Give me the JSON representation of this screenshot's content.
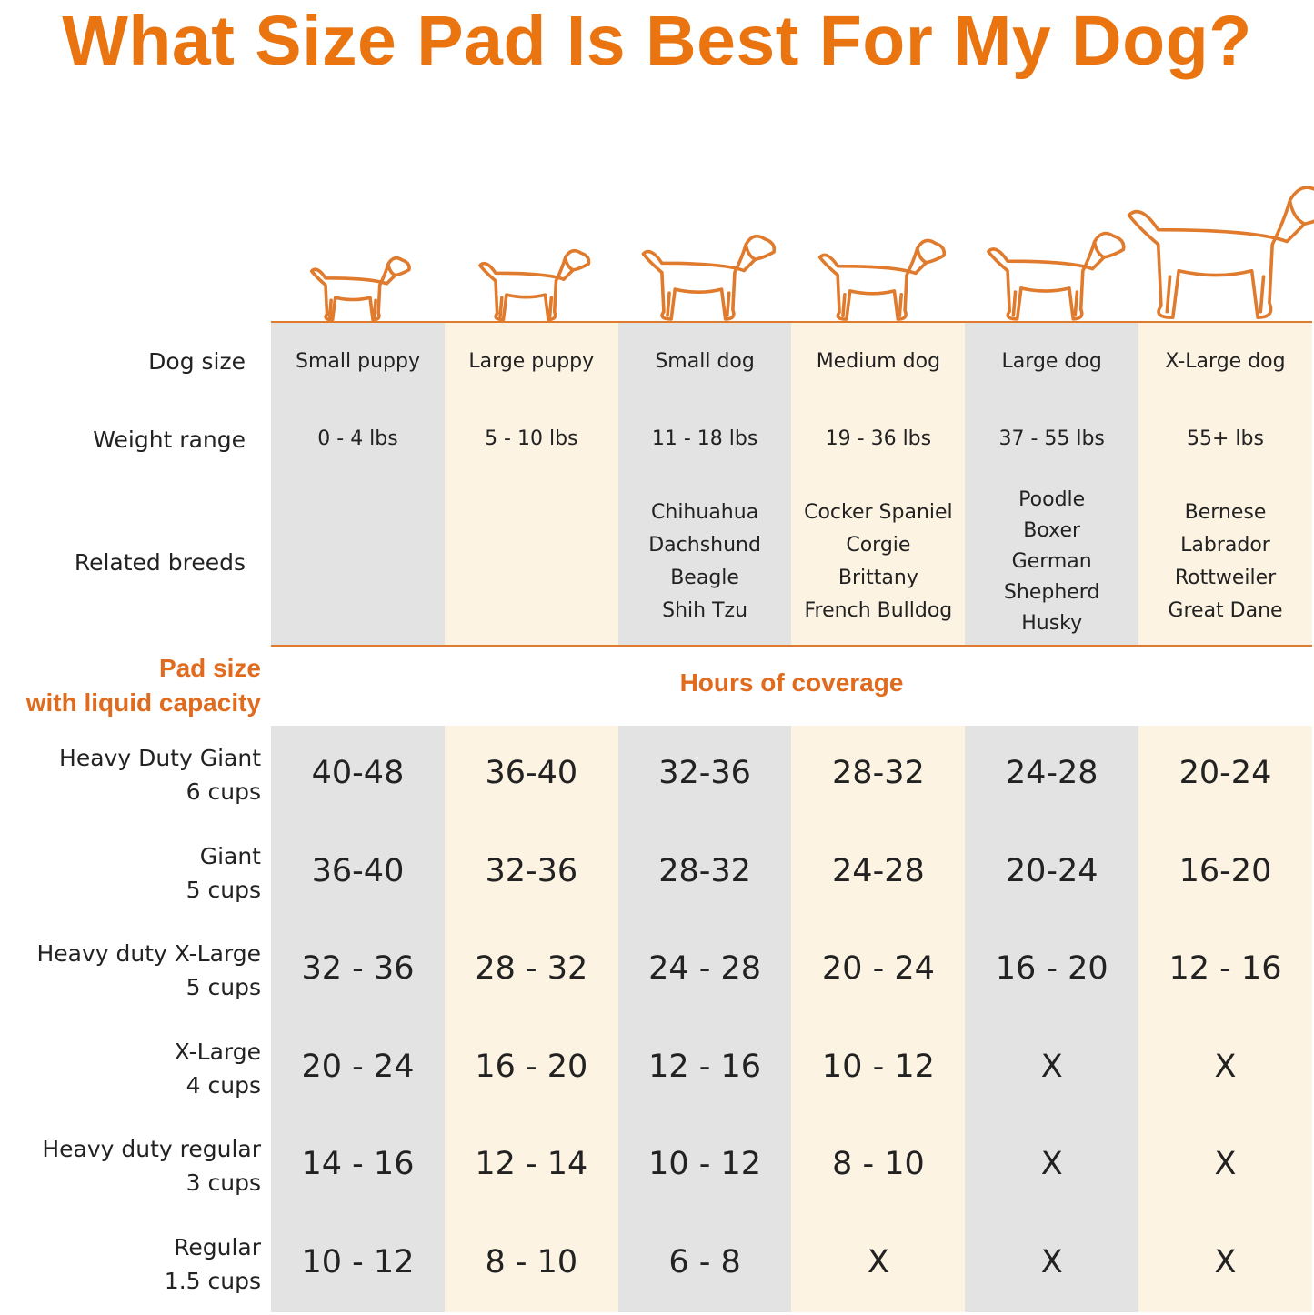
{
  "title": "What Size Pad Is Best For My Dog?",
  "colors": {
    "accent": "#ea7410",
    "gray_column": "#e3e3e3",
    "cream_column": "#fdf3e2"
  },
  "row_labels": {
    "dog_size": "Dog size",
    "weight_range": "Weight range",
    "related_breeds": "Related breeds"
  },
  "pad_header": {
    "line1": "Pad size",
    "line2": "with liquid capacity"
  },
  "coverage_header": "Hours of coverage",
  "dogs": [
    {
      "icon": "small-puppy-icon",
      "size": "Small puppy",
      "weight": "0 - 4 lbs",
      "breeds": []
    },
    {
      "icon": "large-puppy-icon",
      "size": "Large puppy",
      "weight": "5 - 10 lbs",
      "breeds": []
    },
    {
      "icon": "small-dog-icon",
      "size": "Small dog",
      "weight": "11 - 18 lbs",
      "breeds": [
        "Chihuahua",
        "Dachshund",
        "Beagle",
        "Shih Tzu"
      ]
    },
    {
      "icon": "medium-dog-icon",
      "size": "Medium dog",
      "weight": "19 - 36 lbs",
      "breeds": [
        "Cocker Spaniel",
        "Corgie",
        "Brittany",
        "French Bulldog"
      ]
    },
    {
      "icon": "large-dog-icon",
      "size": "Large dog",
      "weight": "37 - 55 lbs",
      "breeds": [
        "Poodle",
        "Boxer",
        "German",
        "Shepherd",
        "Husky"
      ]
    },
    {
      "icon": "xlarge-dog-icon",
      "size": "X-Large dog",
      "weight": "55+ lbs",
      "breeds": [
        "Bernese",
        "Labrador",
        "Rottweiler",
        "Great Dane"
      ]
    }
  ],
  "pads": [
    {
      "name": "Heavy Duty Giant",
      "capacity": "6 cups",
      "hours": [
        "40-48",
        "36-40",
        "32-36",
        "28-32",
        "24-28",
        "20-24"
      ]
    },
    {
      "name": "Giant",
      "capacity": "5 cups",
      "hours": [
        "36-40",
        "32-36",
        "28-32",
        "24-28",
        "20-24",
        "16-20"
      ]
    },
    {
      "name": "Heavy duty X-Large",
      "capacity": "5 cups",
      "hours": [
        "32 - 36",
        "28 - 32",
        "24 - 28",
        "20 - 24",
        "16 - 20",
        "12 - 16"
      ]
    },
    {
      "name": "X-Large",
      "capacity": "4 cups",
      "hours": [
        "20 - 24",
        "16 - 20",
        "12 - 16",
        "10 - 12",
        "X",
        "X"
      ]
    },
    {
      "name": "Heavy duty regular",
      "capacity": "3 cups",
      "hours": [
        "14 - 16",
        "12 - 14",
        "10 - 12",
        "8 - 10",
        "X",
        "X"
      ]
    },
    {
      "name": "Regular",
      "capacity": "1.5 cups",
      "hours": [
        "10 - 12",
        "8 - 10",
        "6 - 8",
        "X",
        "X",
        "X"
      ]
    }
  ]
}
